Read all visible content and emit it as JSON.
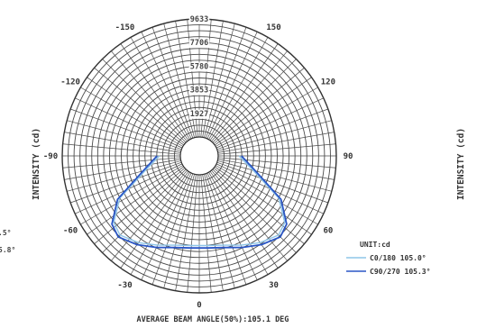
{
  "chart_data": {
    "type": "polar",
    "ylabel": "INTENSITY (cd)",
    "ylabel_right": "INTENSITY (cd)",
    "ring_values": [
      1927,
      3853,
      5780,
      7706,
      9633
    ],
    "angle_ticks": [
      {
        "angle": 0,
        "label": "0"
      },
      {
        "angle": 30,
        "label": "30"
      },
      {
        "angle": -30,
        "label": "-30"
      },
      {
        "angle": 60,
        "label": "60"
      },
      {
        "angle": -60,
        "label": "-60"
      },
      {
        "angle": 90,
        "label": "90"
      },
      {
        "angle": -90,
        "label": "-90"
      },
      {
        "angle": 120,
        "label": "120"
      },
      {
        "angle": -120,
        "label": "-120"
      },
      {
        "angle": 150,
        "label": "150"
      },
      {
        "angle": -150,
        "label": "-150"
      }
    ],
    "unit_label": "UNIT:cd",
    "series": [
      {
        "name": "C0/180 105.0°",
        "color": "#8ec5e8",
        "points": [
          {
            "angle": -90,
            "r": 1700
          },
          {
            "angle": -75,
            "r": 3000
          },
          {
            "angle": -62,
            "r": 5800
          },
          {
            "angle": -52,
            "r": 7300
          },
          {
            "angle": -45,
            "r": 7600
          },
          {
            "angle": -35,
            "r": 7100
          },
          {
            "angle": -25,
            "r": 6500
          },
          {
            "angle": -15,
            "r": 6000
          },
          {
            "angle": -5,
            "r": 5800
          },
          {
            "angle": 5,
            "r": 5800
          },
          {
            "angle": 15,
            "r": 6000
          },
          {
            "angle": 25,
            "r": 6500
          },
          {
            "angle": 35,
            "r": 7100
          },
          {
            "angle": 45,
            "r": 7600
          },
          {
            "angle": 52,
            "r": 7300
          },
          {
            "angle": 62,
            "r": 5800
          },
          {
            "angle": 75,
            "r": 3000
          },
          {
            "angle": 90,
            "r": 1700
          }
        ]
      },
      {
        "name": "C90/270 105.3°",
        "color": "#2a56c6",
        "points": [
          {
            "angle": -90,
            "r": 1900
          },
          {
            "angle": -75,
            "r": 3200
          },
          {
            "angle": -62,
            "r": 6000
          },
          {
            "angle": -52,
            "r": 7500
          },
          {
            "angle": -45,
            "r": 7800
          },
          {
            "angle": -35,
            "r": 7300
          },
          {
            "angle": -25,
            "r": 6700
          },
          {
            "angle": -15,
            "r": 6200
          },
          {
            "angle": -5,
            "r": 6000
          },
          {
            "angle": 5,
            "r": 6000
          },
          {
            "angle": 15,
            "r": 6200
          },
          {
            "angle": 25,
            "r": 6700
          },
          {
            "angle": 35,
            "r": 7300
          },
          {
            "angle": 45,
            "r": 7800
          },
          {
            "angle": 52,
            "r": 7500
          },
          {
            "angle": 62,
            "r": 6000
          },
          {
            "angle": 75,
            "r": 3200
          },
          {
            "angle": 90,
            "r": 1900
          }
        ]
      }
    ],
    "footer": "AVERAGE BEAM ANGLE(50%):105.1 DEG",
    "cropped_left_fragments": [
      ".5°",
      "5.8°"
    ]
  }
}
